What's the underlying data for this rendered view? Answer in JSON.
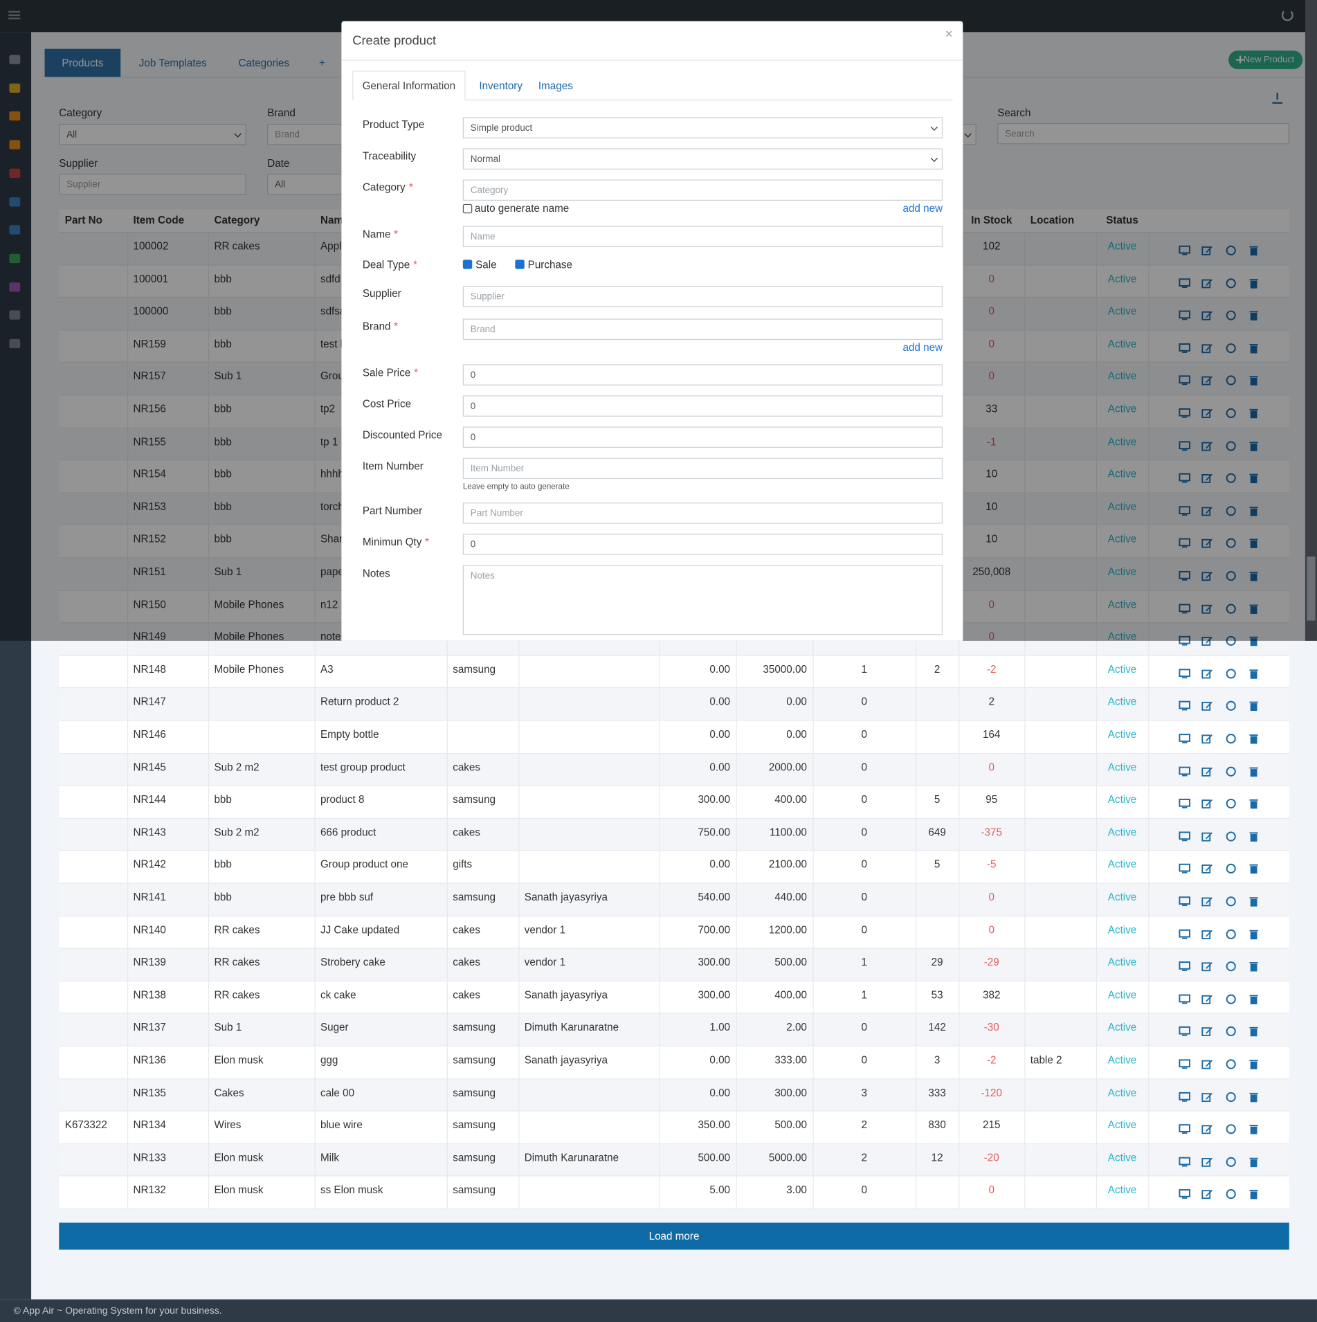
{
  "nav": {
    "tabs": [
      "Products",
      "Job Templates",
      "Categories",
      "+"
    ],
    "new_product": "New Product"
  },
  "filters": {
    "category": {
      "label": "Category",
      "value": "All"
    },
    "brand": {
      "label": "Brand",
      "placeholder": "Brand"
    },
    "supplier": {
      "label": "Supplier",
      "placeholder": "Supplier"
    },
    "date": {
      "label": "Date",
      "value": "All"
    },
    "search": {
      "label": "Search",
      "placeholder": "Search"
    }
  },
  "table": {
    "headers": [
      "Part No",
      "Item Code",
      "Category",
      "Name",
      null,
      null,
      null,
      null,
      null,
      null,
      "In Stock",
      "Location",
      "Status"
    ],
    "rows": [
      [
        null,
        "100002",
        "RR cakes",
        "Appl",
        null,
        null,
        null,
        null,
        null,
        null,
        "102",
        null,
        "Active"
      ],
      [
        null,
        "100001",
        "bbb",
        "sdfd",
        null,
        null,
        null,
        null,
        null,
        null,
        "0",
        null,
        "Active"
      ],
      [
        null,
        "100000",
        "bbb",
        "sdfsa",
        null,
        null,
        null,
        null,
        null,
        null,
        "0",
        null,
        "Active"
      ],
      [
        null,
        "NR159",
        "bbb",
        "test l",
        null,
        null,
        null,
        null,
        null,
        null,
        "0",
        null,
        "Active"
      ],
      [
        null,
        "NR157",
        "Sub 1",
        "Grou",
        null,
        null,
        null,
        null,
        null,
        null,
        "0",
        null,
        "Active"
      ],
      [
        null,
        "NR156",
        "bbb",
        "tp2",
        null,
        null,
        null,
        null,
        null,
        null,
        "33",
        null,
        "Active"
      ],
      [
        null,
        "NR155",
        "bbb",
        "tp 1",
        null,
        null,
        null,
        null,
        null,
        null,
        "-1",
        null,
        "Active"
      ],
      [
        null,
        "NR154",
        "bbb",
        "hhhh",
        null,
        null,
        null,
        null,
        null,
        null,
        "10",
        null,
        "Active"
      ],
      [
        null,
        "NR153",
        "bbb",
        "torch",
        null,
        null,
        null,
        null,
        null,
        null,
        "10",
        null,
        "Active"
      ],
      [
        null,
        "NR152",
        "bbb",
        "Shan",
        null,
        null,
        null,
        null,
        null,
        null,
        "10",
        null,
        "Active"
      ],
      [
        null,
        "NR151",
        "Sub 1",
        "pape",
        null,
        null,
        null,
        null,
        null,
        null,
        "250,008",
        null,
        "Active"
      ],
      [
        null,
        "NR150",
        "Mobile Phones",
        "n12",
        null,
        null,
        null,
        null,
        null,
        null,
        "0",
        null,
        "Active"
      ],
      [
        null,
        "NR149",
        "Mobile Phones",
        "note",
        null,
        null,
        null,
        null,
        null,
        null,
        "0",
        null,
        "Active"
      ],
      [
        null,
        "NR148",
        "Mobile Phones",
        "A3",
        "samsung",
        null,
        "0.00",
        "35000.00",
        "1",
        "2",
        "-2",
        null,
        "Active"
      ],
      [
        null,
        "NR147",
        null,
        "Return product 2",
        null,
        null,
        "0.00",
        "0.00",
        "0",
        null,
        "2",
        null,
        "Active"
      ],
      [
        null,
        "NR146",
        null,
        "Empty bottle",
        null,
        null,
        "0.00",
        "0.00",
        "0",
        null,
        "164",
        null,
        "Active"
      ],
      [
        null,
        "NR145",
        "Sub 2 m2",
        "test group product",
        "cakes",
        null,
        "0.00",
        "2000.00",
        "0",
        null,
        "0",
        null,
        "Active"
      ],
      [
        null,
        "NR144",
        "bbb",
        "product 8",
        "samsung",
        null,
        "300.00",
        "400.00",
        "0",
        "5",
        "95",
        null,
        "Active"
      ],
      [
        null,
        "NR143",
        "Sub 2 m2",
        "666 product",
        "cakes",
        null,
        "750.00",
        "1100.00",
        "0",
        "649",
        "-375",
        null,
        "Active"
      ],
      [
        null,
        "NR142",
        "bbb",
        "Group product one",
        "gifts",
        null,
        "0.00",
        "2100.00",
        "0",
        "5",
        "-5",
        null,
        "Active"
      ],
      [
        null,
        "NR141",
        "bbb",
        "pre bbb suf",
        "samsung",
        "Sanath jayasyriya",
        "540.00",
        "440.00",
        "0",
        null,
        "0",
        null,
        "Active"
      ],
      [
        null,
        "NR140",
        "RR cakes",
        "JJ Cake updated",
        "cakes",
        "vendor 1",
        "700.00",
        "1200.00",
        "0",
        null,
        "0",
        null,
        "Active"
      ],
      [
        null,
        "NR139",
        "RR cakes",
        "Strobery cake",
        "cakes",
        "vendor 1",
        "300.00",
        "500.00",
        "1",
        "29",
        "-29",
        null,
        "Active"
      ],
      [
        null,
        "NR138",
        "RR cakes",
        "ck cake",
        "cakes",
        "Sanath jayasyriya",
        "300.00",
        "400.00",
        "1",
        "53",
        "382",
        null,
        "Active"
      ],
      [
        null,
        "NR137",
        "Sub 1",
        "Suger",
        "samsung",
        "Dimuth Karunaratne",
        "1.00",
        "2.00",
        "0",
        "142",
        "-30",
        null,
        "Active"
      ],
      [
        null,
        "NR136",
        "Elon musk",
        "ggg",
        "samsung",
        "Sanath jayasyriya",
        "0.00",
        "333.00",
        "0",
        "3",
        "-2",
        "table 2",
        "Active"
      ],
      [
        null,
        "NR135",
        "Cakes",
        "cale 00",
        "samsung",
        null,
        "0.00",
        "300.00",
        "3",
        "333",
        "-120",
        null,
        "Active"
      ],
      [
        "K673322",
        "NR134",
        "Wires",
        "blue wire",
        "samsung",
        null,
        "350.00",
        "500.00",
        "2",
        "830",
        "215",
        null,
        "Active"
      ],
      [
        null,
        "NR133",
        "Elon musk",
        "Milk",
        "samsung",
        "Dimuth Karunaratne",
        "500.00",
        "5000.00",
        "2",
        "12",
        "-20",
        null,
        "Active"
      ],
      [
        null,
        "NR132",
        "Elon musk",
        "ss Elon musk",
        "samsung",
        null,
        "5.00",
        "3.00",
        "0",
        null,
        "0",
        null,
        "Active"
      ]
    ]
  },
  "load_more": "Load more",
  "footer": "© App Air ~ Operating System for your business.",
  "modal": {
    "title": "Create product",
    "close": "×",
    "required_mark": "*",
    "tabs": [
      "General Information",
      "Inventory",
      "Images"
    ],
    "fields": [
      {
        "label": "Product Type",
        "kind": "select",
        "value": "Simple product"
      },
      {
        "label": "Traceability",
        "kind": "select",
        "value": "Normal"
      },
      {
        "label": "Category",
        "required": true,
        "kind": "text",
        "placeholder": "Category",
        "checkbox": "auto generate name",
        "link": "add new"
      },
      {
        "label": "Name",
        "required": true,
        "kind": "text",
        "placeholder": "Name"
      },
      {
        "label": "Deal Type",
        "required": true,
        "kind": "checks",
        "options": [
          {
            "label": "Sale",
            "checked": true
          },
          {
            "label": "Purchase",
            "checked": true
          }
        ]
      },
      {
        "label": "Supplier",
        "kind": "text",
        "placeholder": "Supplier"
      },
      {
        "label": "Brand",
        "required": true,
        "kind": "text",
        "placeholder": "Brand",
        "link": "add new"
      },
      {
        "label": "Sale Price",
        "required": true,
        "kind": "text",
        "value": "0"
      },
      {
        "label": "Cost Price",
        "kind": "text",
        "value": "0"
      },
      {
        "label": "Discounted Price",
        "kind": "text",
        "value": "0"
      },
      {
        "label": "Item Number",
        "kind": "text",
        "placeholder": "Item Number",
        "help": "Leave empty to auto generate"
      },
      {
        "label": "Part Number",
        "kind": "text",
        "placeholder": "Part Number"
      },
      {
        "label": "Minimun Qty",
        "required": true,
        "kind": "text",
        "value": "0"
      },
      {
        "label": "Notes",
        "kind": "textarea",
        "placeholder": "Notes"
      }
    ]
  }
}
